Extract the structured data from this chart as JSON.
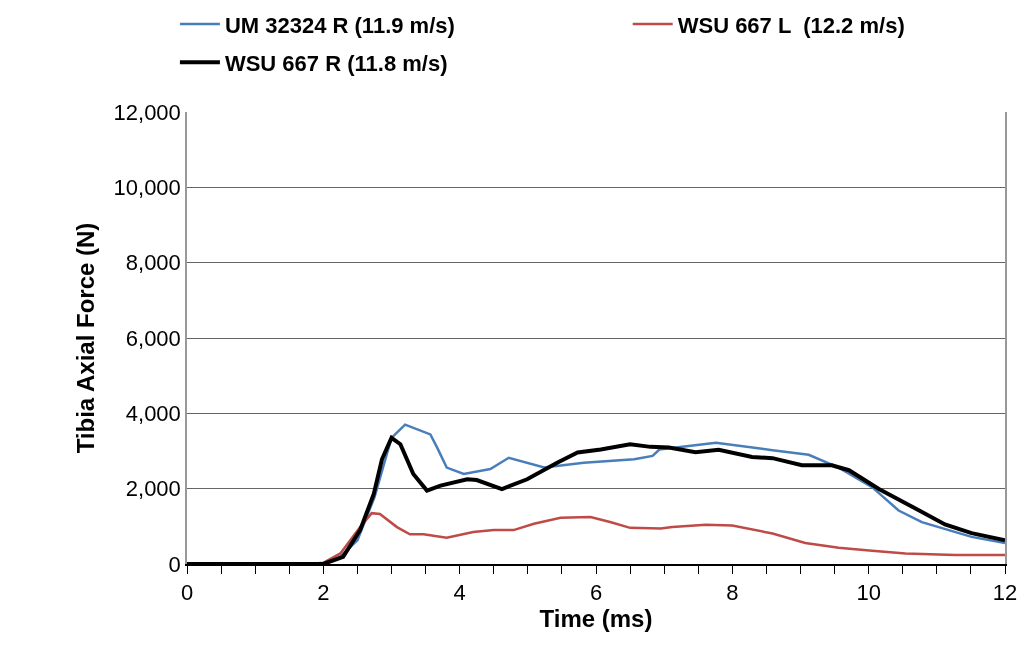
{
  "chart_data": {
    "type": "line",
    "xlabel": "Time (ms)",
    "ylabel": "Tibia Axial Force (N)",
    "xlim": [
      0,
      12
    ],
    "xticks": [
      0,
      2,
      4,
      6,
      8,
      10,
      12
    ],
    "ylim": [
      0,
      12000
    ],
    "yticks": [
      {
        "value": 0,
        "label": "0"
      },
      {
        "value": 2000,
        "label": "2,000"
      },
      {
        "value": 4000,
        "label": "4,000"
      },
      {
        "value": 6000,
        "label": "6,000"
      },
      {
        "value": 8000,
        "label": "8,000"
      },
      {
        "value": 10000,
        "label": "10,000"
      },
      {
        "value": 12000,
        "label": "12,000"
      }
    ],
    "grid": "y",
    "legend": "top",
    "marker": "none",
    "line_style": "solid",
    "series": [
      {
        "name": "UM 32324 R (11.9 m/s)",
        "color": "#4a7ebb",
        "x": [
          2.0,
          2.25,
          2.5,
          2.75,
          3.0,
          3.2,
          3.57,
          3.67,
          3.81,
          4.06,
          4.45,
          4.72,
          5.24,
          5.82,
          6.56,
          6.83,
          6.93,
          7.76,
          8.59,
          9.12,
          9.56,
          10.05,
          10.44,
          10.78,
          11.51,
          12
        ],
        "values": [
          0,
          200,
          630,
          1770,
          3350,
          3700,
          3440,
          3090,
          2560,
          2390,
          2520,
          2820,
          2560,
          2690,
          2780,
          2870,
          3040,
          3220,
          3020,
          2900,
          2560,
          2040,
          1420,
          1110,
          720,
          560
        ]
      },
      {
        "name": "WSU 667 L  (12.2 m/s)",
        "color": "#be4b48",
        "x": [
          0,
          1.8,
          2.0,
          2.25,
          2.54,
          2.71,
          2.83,
          3.08,
          3.27,
          3.47,
          3.81,
          4.2,
          4.5,
          4.79,
          5.09,
          5.48,
          5.92,
          6.22,
          6.5,
          6.95,
          7.12,
          7.61,
          8.0,
          8.59,
          9.07,
          9.56,
          10.05,
          10.54,
          11.27,
          12
        ],
        "values": [
          0,
          0,
          30,
          280,
          980,
          1350,
          1330,
          980,
          790,
          790,
          700,
          850,
          900,
          900,
          1070,
          1230,
          1250,
          1110,
          960,
          940,
          980,
          1040,
          1020,
          810,
          560,
          430,
          350,
          280,
          240,
          240
        ]
      },
      {
        "name": "WSU 667 R (11.8 m/s)",
        "color": "#000000",
        "x": [
          0,
          1.8,
          2.0,
          2.29,
          2.54,
          2.74,
          2.86,
          3.0,
          3.13,
          3.32,
          3.52,
          3.72,
          4.11,
          4.25,
          4.62,
          4.99,
          5.43,
          5.73,
          6.07,
          6.5,
          6.8,
          7.07,
          7.46,
          7.8,
          8.29,
          8.59,
          9.02,
          9.46,
          9.71,
          10.15,
          10.68,
          11.12,
          11.51,
          12
        ],
        "values": [
          0,
          0,
          0,
          190,
          900,
          1860,
          2780,
          3350,
          3180,
          2390,
          1950,
          2080,
          2250,
          2230,
          1990,
          2250,
          2690,
          2960,
          3040,
          3180,
          3110,
          3090,
          2970,
          3030,
          2840,
          2810,
          2620,
          2620,
          2490,
          1990,
          1480,
          1050,
          820,
          630
        ]
      }
    ]
  }
}
